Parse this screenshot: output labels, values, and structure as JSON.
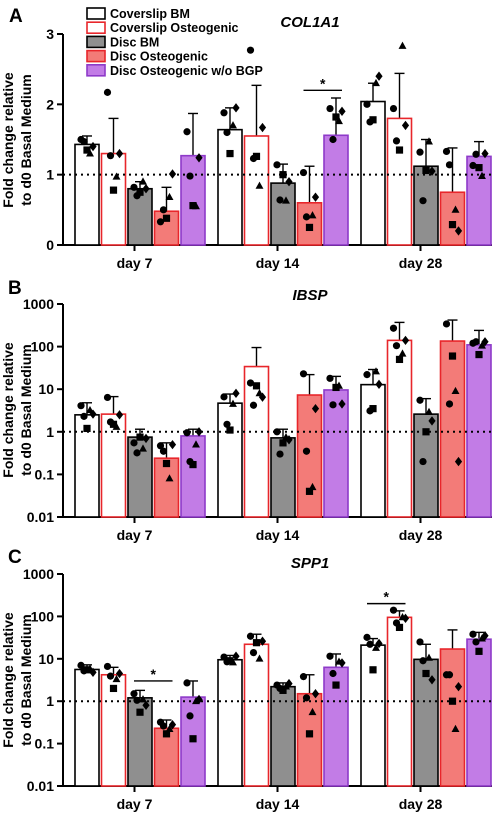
{
  "figure": {
    "legend": [
      {
        "label": "Coverslip BM",
        "fill": "#ffffff",
        "stroke": "#000000"
      },
      {
        "label": "Coverslip Osteogenic",
        "fill": "#ffffff",
        "stroke": "#e8262b"
      },
      {
        "label": "Disc BM",
        "fill": "#8f8f8f",
        "stroke": "#000000"
      },
      {
        "label": "Disc Osteogenic",
        "fill": "#f37b78",
        "stroke": "#e8262b"
      },
      {
        "label": "Disc Osteogenic w/o BGP",
        "fill": "#c27ce6",
        "stroke": "#8e3ac9"
      }
    ],
    "point_shape_order": [
      "circle",
      "circle",
      "square",
      "triangle",
      "diamond"
    ]
  },
  "chart_data": [
    {
      "panel": "A",
      "type": "bar",
      "title": "COL1A1",
      "ylabel_lines": [
        "Fold change relative",
        "to d0 Basal Medium"
      ],
      "scale": "linear",
      "ylim": [
        0,
        3
      ],
      "yticks": [
        0,
        1,
        2,
        3
      ],
      "ytick_labels": [
        "0",
        "1",
        "2",
        "3"
      ],
      "reference_line": 1,
      "categories": [
        "day 7",
        "day 14",
        "day 28"
      ],
      "series": [
        {
          "name": "Coverslip BM",
          "values": [
            1.43,
            1.64,
            2.04
          ],
          "err_upper": [
            1.55,
            1.95,
            2.3
          ],
          "points": [
            [
              1.5,
              1.47,
              1.35,
              1.3,
              1.4
            ],
            [
              1.88,
              1.6,
              1.3,
              1.7,
              1.95
            ],
            [
              2.0,
              1.75,
              1.78,
              2.3,
              2.4
            ]
          ]
        },
        {
          "name": "Coverslip Osteogenic",
          "values": [
            1.3,
            1.55,
            1.8
          ],
          "err_upper": [
            1.8,
            2.27,
            2.44
          ],
          "points": [
            [
              2.17,
              1.27,
              0.78,
              0.97,
              1.3
            ],
            [
              2.77,
              1.23,
              1.26,
              0.84,
              1.67
            ],
            [
              1.94,
              1.48,
              1.35,
              2.83,
              1.7
            ]
          ]
        },
        {
          "name": "Disc BM",
          "values": [
            0.8,
            0.88,
            1.12
          ],
          "err_upper": [
            0.9,
            1.15,
            1.5
          ],
          "points": [
            [
              0.82,
              0.7,
              0.75,
              0.9,
              0.8
            ],
            [
              1.14,
              0.64,
              1.0,
              0.63,
              0.9
            ],
            [
              1.32,
              0.63,
              1.06,
              1.47,
              1.05
            ]
          ]
        },
        {
          "name": "Disc Osteogenic",
          "values": [
            0.48,
            0.6,
            0.75
          ],
          "err_upper": [
            0.82,
            1.12,
            1.38
          ],
          "points": [
            [
              0.33,
              0.5,
              0.38,
              0.68,
              1.01
            ],
            [
              1.03,
              0.4,
              0.25,
              0.42,
              0.68
            ],
            [
              1.33,
              1.14,
              0.29,
              0.5,
              0.2
            ]
          ]
        },
        {
          "name": "Disc Osteogenic w/o BGP",
          "values": [
            1.27,
            1.56,
            1.26
          ],
          "err_upper": [
            1.87,
            2.09,
            1.47
          ],
          "points": [
            [
              1.61,
              0.98,
              0.56,
              0.55,
              1.24
            ],
            [
              1.94,
              1.5,
              1.82,
              1.76,
              1.9
            ],
            [
              1.13,
              1.29,
              1.1,
              0.98,
              1.3
            ]
          ]
        }
      ],
      "significance": [
        {
          "category": "day 14",
          "from": 3,
          "to": 4,
          "label": "*",
          "y": 2.2
        }
      ]
    },
    {
      "panel": "B",
      "type": "bar",
      "title": "IBSP",
      "ylabel_lines": [
        "Fold change relative",
        "to d0 Basal Medium"
      ],
      "scale": "log",
      "ylim": [
        0.01,
        1000
      ],
      "yticks": [
        0.01,
        0.1,
        1,
        10,
        100,
        1000
      ],
      "ytick_labels": [
        "0.01",
        "0.1",
        "1",
        "10",
        "100",
        "1000"
      ],
      "reference_line": 1,
      "categories": [
        "day 7",
        "day 14",
        "day 28"
      ],
      "series": [
        {
          "name": "Coverslip BM",
          "values": [
            2.5,
            4.7,
            12.8
          ],
          "err_upper": [
            4.8,
            7.7,
            29
          ],
          "points": [
            [
              4.1,
              2.3,
              1.2,
              3.2,
              2.6
            ],
            [
              6.6,
              1.5,
              1.1,
              4.5,
              8.0
            ],
            [
              22,
              3.1,
              3.5,
              26,
              13
            ]
          ]
        },
        {
          "name": "Coverslip Osteogenic",
          "values": [
            2.6,
            34,
            140
          ],
          "err_upper": [
            6.7,
            95,
            370
          ],
          "points": [
            [
              6.4,
              1.7,
              1.5,
              1.3,
              2.5
            ],
            [
              14,
              4.2,
              12,
              8.0,
              6.5
            ],
            [
              270,
              105,
              50,
              68,
              140
            ]
          ]
        },
        {
          "name": "Disc BM",
          "values": [
            0.75,
            0.72,
            2.6
          ],
          "err_upper": [
            1.15,
            1.15,
            6.0
          ],
          "points": [
            [
              0.55,
              0.32,
              0.75,
              0.4,
              0.7
            ],
            [
              1.0,
              0.3,
              0.55,
              0.74,
              0.65
            ],
            [
              5.5,
              0.2,
              1.0,
              2.9,
              1.8
            ]
          ]
        },
        {
          "name": "Disc Osteogenic",
          "values": [
            0.24,
            7.3,
            135
          ],
          "err_upper": [
            0.55,
            22,
            420
          ],
          "points": [
            [
              0.47,
              0.35,
              0.18,
              0.08,
              0.5
            ],
            [
              23,
              0.35,
              0.04,
              0.05,
              3.5
            ],
            [
              340,
              4.5,
              60,
              9,
              0.2
            ]
          ]
        },
        {
          "name": "Disc Osteogenic w/o BGP",
          "values": [
            0.8,
            9.6,
            110
          ],
          "err_upper": [
            1.15,
            20,
            240
          ],
          "points": [
            [
              0.95,
              0.2,
              0.17,
              0.5,
              1.0
            ],
            [
              18,
              4.3,
              11,
              12,
              4.5
            ],
            [
              120,
              130,
              65,
              105,
              130
            ]
          ]
        }
      ],
      "significance": []
    },
    {
      "panel": "C",
      "type": "bar",
      "title": "SPP1",
      "ylabel_lines": [
        "Fold change relative",
        "to d0 Basal Medium"
      ],
      "scale": "log",
      "ylim": [
        0.01,
        1000
      ],
      "yticks": [
        0.01,
        0.1,
        1,
        10,
        100,
        1000
      ],
      "ytick_labels": [
        "0.01",
        "0.1",
        "1",
        "10",
        "100",
        "1000"
      ],
      "reference_line": 1,
      "categories": [
        "day 7",
        "day 14",
        "day 28"
      ],
      "series": [
        {
          "name": "Coverslip BM",
          "values": [
            5.6,
            9.5,
            21
          ],
          "err_upper": [
            7.2,
            12,
            30
          ],
          "points": [
            [
              7.0,
              5.2,
              5.5,
              5.8,
              4.8
            ],
            [
              11,
              8.5,
              9.0,
              8.2,
              11.5
            ],
            [
              32,
              22,
              5.5,
              18,
              23
            ]
          ]
        },
        {
          "name": "Coverslip Osteogenic",
          "values": [
            4.2,
            22,
            95
          ],
          "err_upper": [
            6.3,
            38,
            135
          ],
          "points": [
            [
              6.6,
              3.9,
              2.0,
              3.3,
              4.5
            ],
            [
              34,
              14,
              24,
              10,
              26
            ],
            [
              140,
              70,
              55,
              95,
              90
            ]
          ]
        },
        {
          "name": "Disc BM",
          "values": [
            1.2,
            2.2,
            9.7
          ],
          "err_upper": [
            1.8,
            2.7,
            22
          ],
          "points": [
            [
              1.5,
              1.05,
              0.55,
              1.1,
              0.8
            ],
            [
              2.4,
              2.0,
              1.8,
              2.2,
              2.6
            ],
            [
              25,
              9.0,
              4.5,
              10.5,
              3.2
            ]
          ]
        },
        {
          "name": "Disc Osteogenic",
          "values": [
            0.23,
            1.5,
            17
          ],
          "err_upper": [
            0.36,
            4.2,
            48
          ],
          "points": [
            [
              0.32,
              0.26,
              0.17,
              0.22,
              0.28
            ],
            [
              3.8,
              1.2,
              0.17,
              0.55,
              1.5
            ],
            [
              4.2,
              4.2,
              1.0,
              0.22,
              2.2
            ]
          ]
        },
        {
          "name": "Disc Osteogenic w/o BGP",
          "values": [
            1.25,
            6.3,
            29
          ],
          "err_upper": [
            3.0,
            13,
            42
          ],
          "points": [
            [
              2.7,
              0.45,
              0.13,
              1.0,
              1.1
            ],
            [
              11.5,
              4.5,
              2.4,
              8.5,
              8.0
            ],
            [
              38,
              25,
              15,
              30,
              35
            ]
          ]
        }
      ],
      "significance": [
        {
          "category": "day 7",
          "from": 2,
          "to": 3,
          "label": "*",
          "y": 3.0
        },
        {
          "category": "day 28",
          "from": 0,
          "to": 1,
          "label": "*",
          "y": 200
        }
      ]
    }
  ]
}
